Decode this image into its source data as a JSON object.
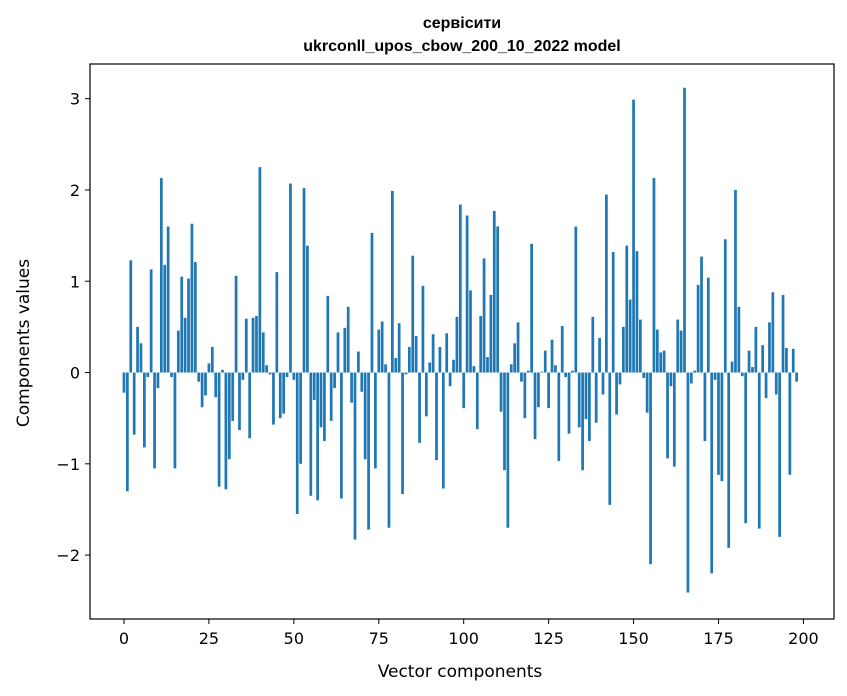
{
  "chart_data": {
    "type": "bar",
    "title_line1": "сервісити",
    "title_line2": "ukrconll_upos_cbow_200_10_2022 model",
    "xlabel": "Vector components",
    "ylabel": "Components values",
    "xlim": [
      -10,
      209
    ],
    "ylim": [
      -2.7,
      3.38
    ],
    "xticks": [
      0,
      25,
      50,
      75,
      100,
      125,
      150,
      175,
      200
    ],
    "yticks": [
      -2,
      -1,
      0,
      1,
      2,
      3
    ],
    "xtick_labels": [
      "0",
      "25",
      "50",
      "75",
      "100",
      "125",
      "150",
      "175",
      "200"
    ],
    "ytick_labels": [
      "−2",
      "−1",
      "0",
      "1",
      "2",
      "3"
    ],
    "bar_color": "#1f77b4",
    "grid": false,
    "values": [
      -0.22,
      -1.3,
      1.23,
      -0.68,
      0.5,
      0.32,
      -0.82,
      -0.05,
      1.13,
      -1.05,
      -0.17,
      2.13,
      1.18,
      1.6,
      -0.05,
      -1.05,
      0.46,
      1.05,
      0.6,
      1.03,
      1.63,
      1.21,
      -0.1,
      -0.38,
      -0.25,
      0.1,
      0.28,
      -0.27,
      -1.25,
      0.03,
      -1.28,
      -0.95,
      -0.53,
      1.06,
      -0.63,
      -0.08,
      0.59,
      -0.72,
      0.6,
      0.62,
      2.25,
      0.44,
      0.08,
      -0.02,
      -0.57,
      1.1,
      -0.5,
      -0.45,
      -0.05,
      2.07,
      -0.08,
      -1.55,
      -1.0,
      2.02,
      1.39,
      -1.35,
      -0.3,
      -1.4,
      -0.6,
      -0.75,
      0.84,
      -0.53,
      -0.17,
      0.44,
      -1.38,
      0.49,
      0.72,
      -0.33,
      -1.83,
      0.23,
      -0.21,
      -0.95,
      -1.72,
      1.53,
      -1.05,
      0.47,
      0.56,
      0.09,
      -1.7,
      1.99,
      0.16,
      0.54,
      -1.33,
      -0.02,
      0.28,
      1.28,
      0.4,
      -0.77,
      0.95,
      -0.48,
      0.11,
      0.42,
      -0.96,
      0.28,
      -1.27,
      0.43,
      -0.15,
      0.14,
      0.61,
      1.84,
      -0.39,
      1.72,
      0.9,
      0.07,
      -0.62,
      0.62,
      1.25,
      0.17,
      0.85,
      1.77,
      1.6,
      -0.43,
      -1.07,
      -1.7,
      0.09,
      0.32,
      0.55,
      -0.1,
      -0.5,
      0.02,
      1.41,
      -0.73,
      -0.38,
      0.01,
      0.24,
      -0.39,
      0.36,
      0.08,
      -0.97,
      0.51,
      -0.05,
      -0.67,
      0.02,
      1.6,
      -0.6,
      -1.07,
      -0.51,
      -0.75,
      0.61,
      -0.55,
      0.38,
      -0.24,
      1.95,
      -1.45,
      1.32,
      -0.46,
      -0.13,
      0.5,
      1.39,
      0.8,
      2.99,
      1.33,
      0.58,
      -0.06,
      -0.44,
      -2.1,
      2.13,
      0.47,
      0.22,
      0.24,
      -0.94,
      -0.15,
      -1.03,
      0.58,
      0.46,
      3.12,
      -2.41,
      -0.12,
      0.02,
      0.96,
      1.27,
      -0.75,
      1.04,
      -2.2,
      -0.08,
      -1.12,
      -1.19,
      1.46,
      -1.92,
      0.12,
      2.0,
      0.72,
      -0.04,
      -1.65,
      0.24,
      0.06,
      0.5,
      -1.71,
      0.3,
      -0.28,
      0.55,
      0.88,
      -0.24,
      -1.8,
      0.85,
      0.27,
      -1.12,
      0.26,
      -0.1
    ]
  }
}
